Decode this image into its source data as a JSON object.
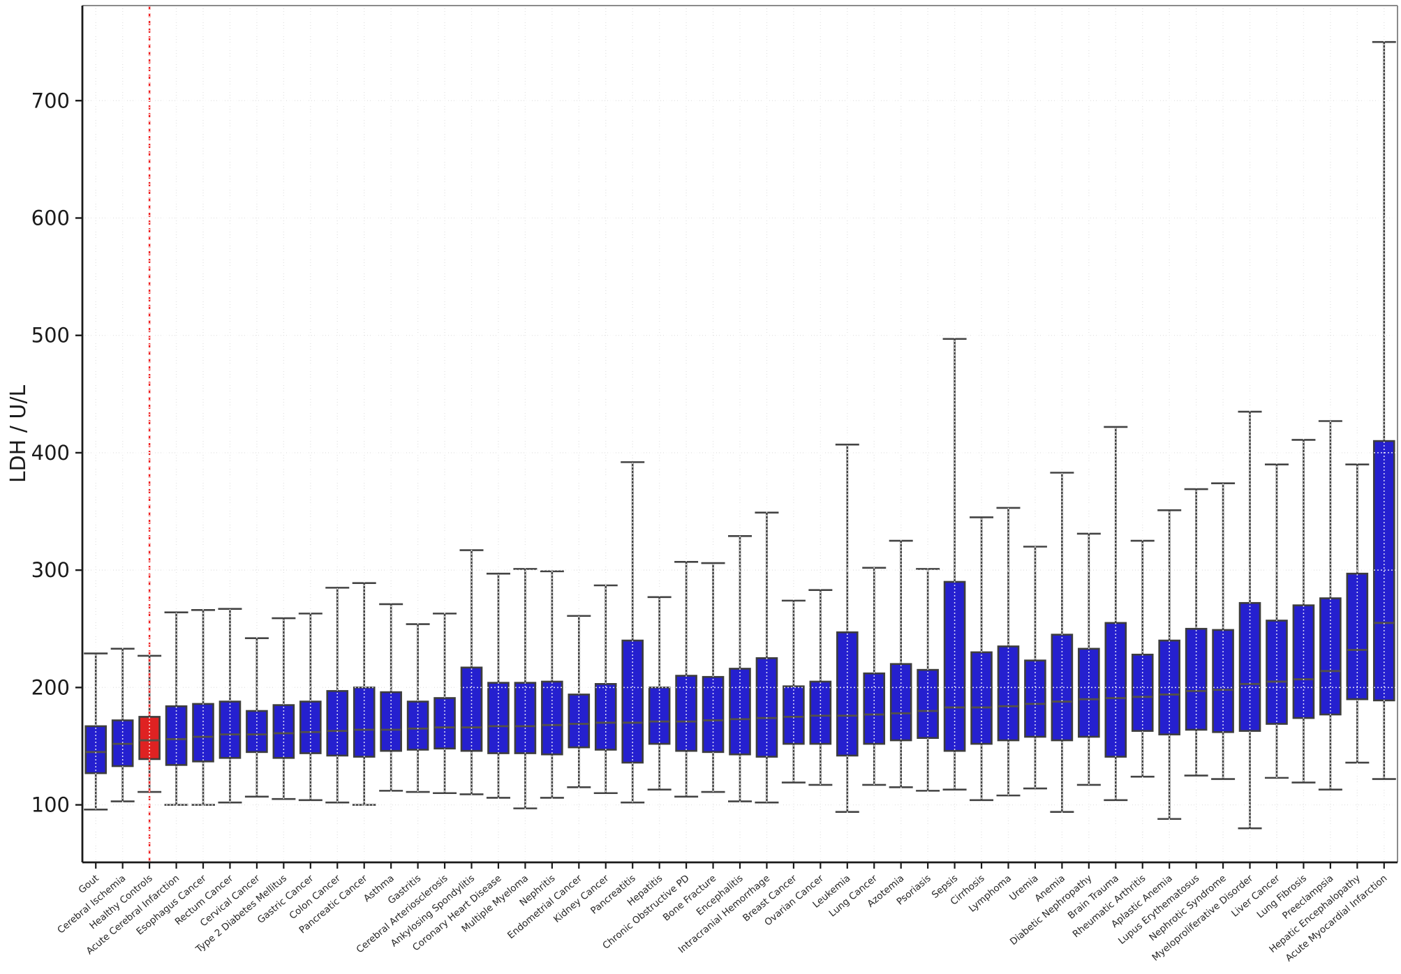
{
  "chart_data": {
    "type": "box",
    "title": "",
    "ylabel": "LDH / U/L",
    "xlabel": "",
    "ylim": [
      51,
      781
    ],
    "yticks": [
      100,
      200,
      300,
      400,
      500,
      600,
      700
    ],
    "grid": true,
    "legend": "none",
    "colors": {
      "box_fill": "#2520cf",
      "highlight_fill": "#df2222",
      "box_edge": "#3d3d3d",
      "median_line": "#54504a",
      "whisker": "#434343",
      "highlight_dashed_line": "#ef1f1f",
      "grid_line": "#e4e4e4",
      "overlay_grid": "#ffffff",
      "axis_dark": "#1a1a1a",
      "axis_light": "#8a8a8a",
      "tick_label": "#1a1a1a",
      "category_label": "#262626"
    },
    "highlight_category": "Healthy Controls",
    "categories": [
      "Gout",
      "Cerebral Ischemia",
      "Healthy Controls",
      "Acute Cerebral Infarction",
      "Esophagus Cancer",
      "Rectum Cancer",
      "Cervical Cancer",
      "Type 2 Diabetes Mellitus",
      "Gastric Cancer",
      "Colon Cancer",
      "Pancreatic Cancer",
      "Asthma",
      "Gastritis",
      "Cerebral Arteriosclerosis",
      "Ankylosing Spondylitis",
      "Coronary Heart Disease",
      "Multiple Myeloma",
      "Nephritis",
      "Endometrial Cancer",
      "Kidney Cancer",
      "Pancreatitis",
      "Hepatitis",
      "Chronic Obstructive PD",
      "Bone Fracture",
      "Encephalitis",
      "Intracranial Hemorrhage",
      "Breast Cancer",
      "Ovarian Cancer",
      "Leukemia",
      "Lung Cancer",
      "Azotemia",
      "Psoriasis",
      "Sepsis",
      "Cirrhosis",
      "Lymphoma",
      "Uremia",
      "Anemia",
      "Diabetic Nephropathy",
      "Brain Trauma",
      "Rheumatic Arthritis",
      "Aplastic Anemia",
      "Lupus Erythematosus",
      "Nephrotic Syndrome",
      "Myeloproliferative Disorder",
      "Liver Cancer",
      "Lung Fibrosis",
      "Preeclampsia",
      "Hepatic Encephalopathy",
      "Acute Myocardial Infarction"
    ],
    "boxes": [
      {
        "label": "Gout",
        "whislo": 96,
        "q1": 127,
        "med": 145,
        "q3": 167,
        "whishi": 229
      },
      {
        "label": "Cerebral Ischemia",
        "whislo": 103,
        "q1": 133,
        "med": 152,
        "q3": 172,
        "whishi": 233
      },
      {
        "label": "Healthy Controls",
        "whislo": 111,
        "q1": 139,
        "med": 155,
        "q3": 175,
        "whishi": 227
      },
      {
        "label": "Acute Cerebral Infarction",
        "whislo": 100,
        "q1": 134,
        "med": 156,
        "q3": 184,
        "whishi": 264
      },
      {
        "label": "Esophagus Cancer",
        "whislo": 100,
        "q1": 137,
        "med": 158,
        "q3": 186,
        "whishi": 266
      },
      {
        "label": "Rectum Cancer",
        "whislo": 102,
        "q1": 140,
        "med": 160,
        "q3": 188,
        "whishi": 267
      },
      {
        "label": "Cervical Cancer",
        "whislo": 107,
        "q1": 145,
        "med": 160,
        "q3": 180,
        "whishi": 242
      },
      {
        "label": "Type 2 Diabetes Mellitus",
        "whislo": 105,
        "q1": 140,
        "med": 161,
        "q3": 185,
        "whishi": 259
      },
      {
        "label": "Gastric Cancer",
        "whislo": 104,
        "q1": 144,
        "med": 162,
        "q3": 188,
        "whishi": 263
      },
      {
        "label": "Colon Cancer",
        "whislo": 102,
        "q1": 142,
        "med": 163,
        "q3": 197,
        "whishi": 285
      },
      {
        "label": "Pancreatic Cancer",
        "whislo": 100,
        "q1": 141,
        "med": 164,
        "q3": 200,
        "whishi": 289
      },
      {
        "label": "Asthma",
        "whislo": 112,
        "q1": 146,
        "med": 164,
        "q3": 196,
        "whishi": 271
      },
      {
        "label": "Gastritis",
        "whislo": 111,
        "q1": 147,
        "med": 165,
        "q3": 188,
        "whishi": 254
      },
      {
        "label": "Cerebral Arteriosclerosis",
        "whislo": 110,
        "q1": 148,
        "med": 166,
        "q3": 191,
        "whishi": 263
      },
      {
        "label": "Ankylosing Spondylitis",
        "whislo": 109,
        "q1": 146,
        "med": 166,
        "q3": 217,
        "whishi": 317
      },
      {
        "label": "Coronary Heart Disease",
        "whislo": 106,
        "q1": 144,
        "med": 167,
        "q3": 204,
        "whishi": 297
      },
      {
        "label": "Multiple Myeloma",
        "whislo": 97,
        "q1": 144,
        "med": 167,
        "q3": 204,
        "whishi": 301
      },
      {
        "label": "Nephritis",
        "whislo": 106,
        "q1": 143,
        "med": 168,
        "q3": 205,
        "whishi": 299
      },
      {
        "label": "Endometrial Cancer",
        "whislo": 115,
        "q1": 149,
        "med": 169,
        "q3": 194,
        "whishi": 261
      },
      {
        "label": "Kidney Cancer",
        "whislo": 110,
        "q1": 147,
        "med": 170,
        "q3": 203,
        "whishi": 287
      },
      {
        "label": "Pancreatitis",
        "whislo": 102,
        "q1": 136,
        "med": 170,
        "q3": 240,
        "whishi": 392
      },
      {
        "label": "Hepatitis",
        "whislo": 113,
        "q1": 152,
        "med": 171,
        "q3": 200,
        "whishi": 277
      },
      {
        "label": "Chronic Obstructive PD",
        "whislo": 107,
        "q1": 146,
        "med": 171,
        "q3": 210,
        "whishi": 307
      },
      {
        "label": "Bone Fracture",
        "whislo": 111,
        "q1": 145,
        "med": 172,
        "q3": 209,
        "whishi": 306
      },
      {
        "label": "Encephalitis",
        "whislo": 103,
        "q1": 143,
        "med": 173,
        "q3": 216,
        "whishi": 329
      },
      {
        "label": "Intracranial Hemorrhage",
        "whislo": 102,
        "q1": 141,
        "med": 174,
        "q3": 225,
        "whishi": 349
      },
      {
        "label": "Breast Cancer",
        "whislo": 119,
        "q1": 152,
        "med": 175,
        "q3": 201,
        "whishi": 274
      },
      {
        "label": "Ovarian Cancer",
        "whislo": 117,
        "q1": 152,
        "med": 176,
        "q3": 205,
        "whishi": 283
      },
      {
        "label": "Leukemia",
        "whislo": 94,
        "q1": 142,
        "med": 176,
        "q3": 247,
        "whishi": 407
      },
      {
        "label": "Lung Cancer",
        "whislo": 117,
        "q1": 152,
        "med": 177,
        "q3": 212,
        "whishi": 302
      },
      {
        "label": "Azotemia",
        "whislo": 115,
        "q1": 155,
        "med": 178,
        "q3": 220,
        "whishi": 325
      },
      {
        "label": "Psoriasis",
        "whislo": 112,
        "q1": 157,
        "med": 180,
        "q3": 215,
        "whishi": 301
      },
      {
        "label": "Sepsis",
        "whislo": 113,
        "q1": 146,
        "med": 183,
        "q3": 290,
        "whishi": 497
      },
      {
        "label": "Cirrhosis",
        "whislo": 104,
        "q1": 152,
        "med": 183,
        "q3": 230,
        "whishi": 345
      },
      {
        "label": "Lymphoma",
        "whislo": 108,
        "q1": 155,
        "med": 184,
        "q3": 235,
        "whishi": 353
      },
      {
        "label": "Uremia",
        "whislo": 114,
        "q1": 158,
        "med": 186,
        "q3": 223,
        "whishi": 320
      },
      {
        "label": "Anemia",
        "whislo": 94,
        "q1": 155,
        "med": 188,
        "q3": 245,
        "whishi": 383
      },
      {
        "label": "Diabetic Nephropathy",
        "whislo": 117,
        "q1": 158,
        "med": 190,
        "q3": 233,
        "whishi": 331
      },
      {
        "label": "Brain Trauma",
        "whislo": 104,
        "q1": 141,
        "med": 191,
        "q3": 255,
        "whishi": 422
      },
      {
        "label": "Rheumatic Arthritis",
        "whislo": 124,
        "q1": 163,
        "med": 192,
        "q3": 228,
        "whishi": 325
      },
      {
        "label": "Aplastic Anemia",
        "whislo": 88,
        "q1": 160,
        "med": 194,
        "q3": 240,
        "whishi": 351
      },
      {
        "label": "Lupus Erythematosus",
        "whislo": 125,
        "q1": 164,
        "med": 197,
        "q3": 250,
        "whishi": 369
      },
      {
        "label": "Nephrotic Syndrome",
        "whislo": 122,
        "q1": 162,
        "med": 198,
        "q3": 249,
        "whishi": 374
      },
      {
        "label": "Myeloproliferative Disorder",
        "whislo": 80,
        "q1": 163,
        "med": 203,
        "q3": 272,
        "whishi": 435
      },
      {
        "label": "Liver Cancer",
        "whislo": 123,
        "q1": 169,
        "med": 205,
        "q3": 257,
        "whishi": 390
      },
      {
        "label": "Lung Fibrosis",
        "whislo": 119,
        "q1": 174,
        "med": 207,
        "q3": 270,
        "whishi": 411
      },
      {
        "label": "Preeclampsia",
        "whislo": 113,
        "q1": 177,
        "med": 214,
        "q3": 276,
        "whishi": 427
      },
      {
        "label": "Hepatic Encephalopathy",
        "whislo": 136,
        "q1": 190,
        "med": 232,
        "q3": 297,
        "whishi": 390
      },
      {
        "label": "Acute Myocardial Infarction",
        "whislo": 122,
        "q1": 189,
        "med": 255,
        "q3": 410,
        "whishi": 750
      }
    ]
  }
}
